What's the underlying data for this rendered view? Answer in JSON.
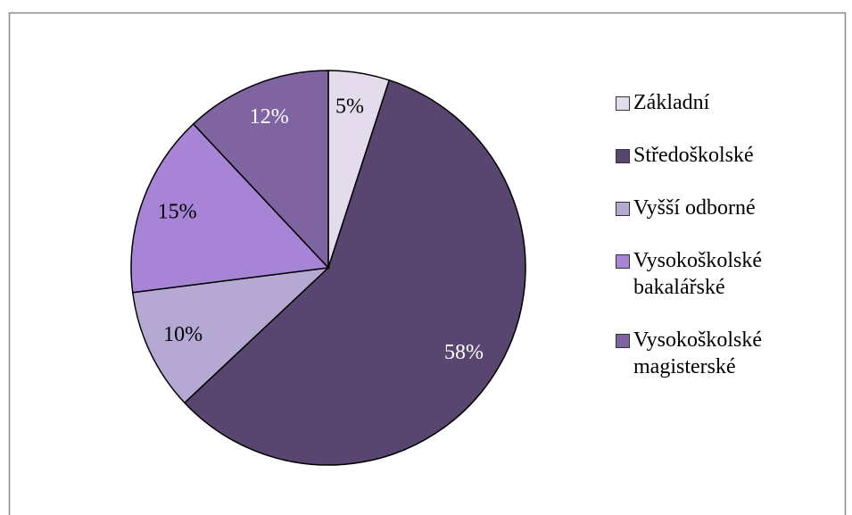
{
  "chart_data": {
    "type": "pie",
    "categories": [
      "Základní",
      "Středoškolské",
      "Vyšší odborné",
      "Vysokoškolské bakalářské",
      "Vysokoškolské magisterské"
    ],
    "values": [
      5,
      58,
      10,
      15,
      12
    ],
    "value_labels": [
      "5%",
      "58%",
      "10%",
      "15%",
      "12%"
    ],
    "colors": [
      "#e4dced",
      "#584670",
      "#b5a8d3",
      "#a884d6",
      "#8064a2"
    ],
    "legend": "right"
  }
}
